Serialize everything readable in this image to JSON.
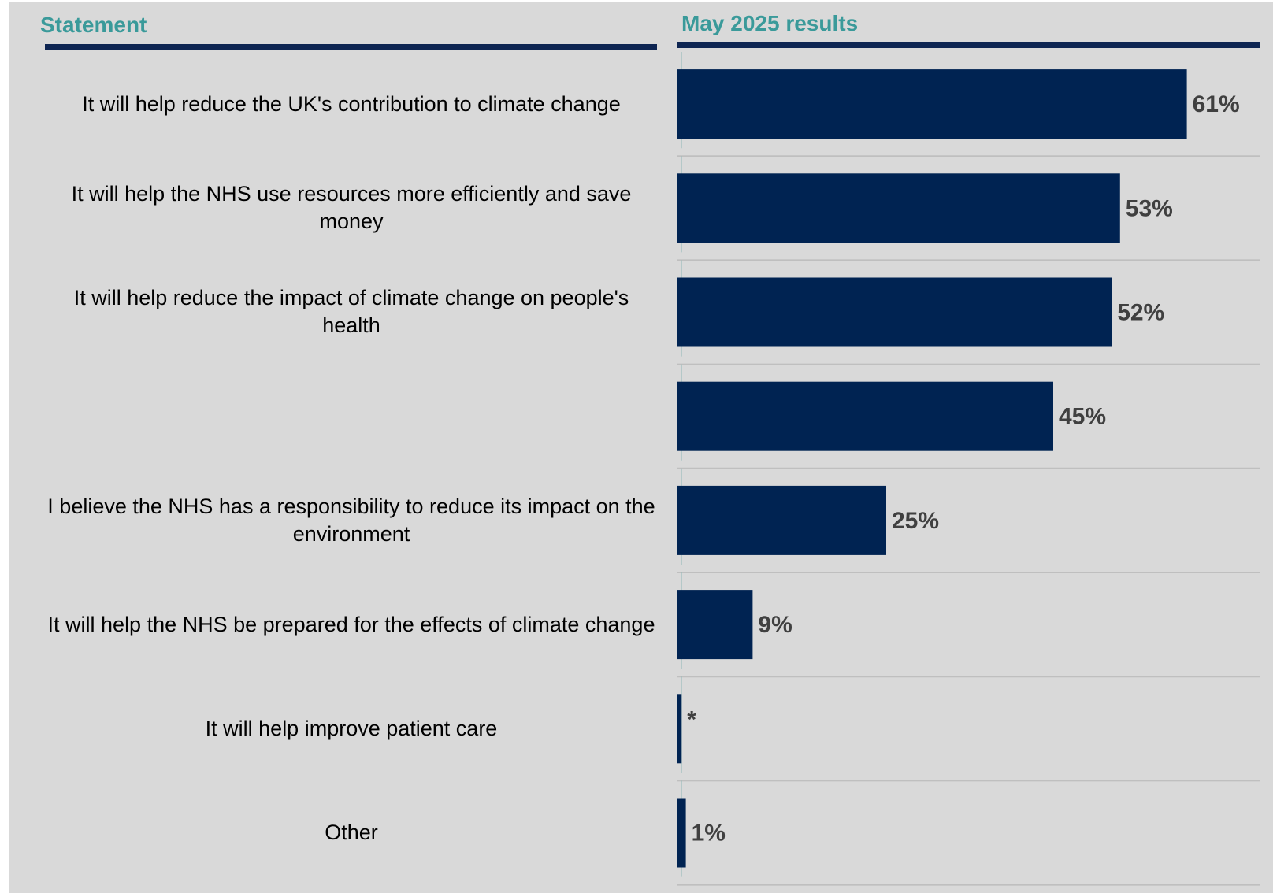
{
  "header": {
    "statement_label": "Statement",
    "results_label": "May 2025 results"
  },
  "colors": {
    "background": "#d9d9d9",
    "header_text": "#3a9a9a",
    "rule": "#0e2552",
    "bar": "#002352",
    "value_text": "#404040",
    "gridline": "#bfbfbf"
  },
  "chart_data": {
    "type": "bar",
    "orientation": "horizontal",
    "categories": [
      "It will help reduce the UK's contribution to climate change",
      "It will help the NHS use resources more efficiently and save money",
      "It will help reduce the impact of climate change on people's health",
      "",
      "I believe the NHS has a responsibility to reduce its impact on the environment",
      "It will help the NHS be prepared for the effects of climate change",
      "It will help improve patient care",
      "Other"
    ],
    "values": [
      61,
      53,
      52,
      45,
      25,
      9,
      0.5,
      1
    ],
    "value_labels": [
      "61%",
      "53%",
      "52%",
      "45%",
      "25%",
      "9%",
      "*",
      "1%"
    ],
    "xlim": [
      0,
      70
    ],
    "grid": true,
    "legend": "none"
  }
}
